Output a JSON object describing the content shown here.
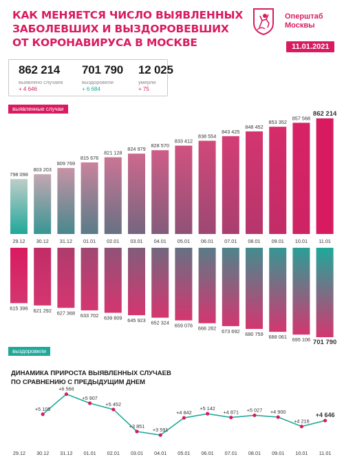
{
  "header": {
    "title_lines": [
      "КАК МЕНЯЕТСЯ ЧИСЛО ВЫЯВЛЕННЫХ",
      "ЗАБОЛЕВШИХ И ВЫЗДОРОВЕВШИХ",
      "ОТ КОРОНАВИРУСА В МОСКВЕ"
    ],
    "brand_lines": [
      "Оперштаб",
      "Москвы"
    ],
    "date": "11.01.2021",
    "logo_icon": "moscow-coat-of-arms-icon"
  },
  "stats": {
    "cases": {
      "value": "862 214",
      "label": "выявлено случаев",
      "delta": "+ 4 646"
    },
    "recovered": {
      "value": "701 790",
      "label": "выздоровели",
      "delta": "+ 6 684"
    },
    "deaths": {
      "value": "12 025",
      "label": "умерли",
      "delta": "+ 75"
    }
  },
  "colors": {
    "accent_pink": "#d81b60",
    "accent_teal": "#1fa89a"
  },
  "chart_data": [
    {
      "type": "bar",
      "legend": "выявленные случаи",
      "categories": [
        "29.12",
        "30.12",
        "31.12",
        "01.01",
        "02.01",
        "03.01",
        "04.01",
        "05.01",
        "06.01",
        "07.01",
        "08.01",
        "09.01",
        "10.01",
        "11.01"
      ],
      "values": [
        798098,
        803203,
        809769,
        815676,
        821128,
        824979,
        828570,
        833412,
        838554,
        843425,
        848452,
        853352,
        857568,
        862214
      ],
      "value_labels": [
        "798 098",
        "803 203",
        "809 769",
        "815 676",
        "821 128",
        "824 979",
        "828 570",
        "833 412",
        "838 554",
        "843 425",
        "848 452",
        "853 352",
        "857 568",
        "862 214"
      ]
    },
    {
      "type": "bar",
      "legend": "выздоровели",
      "categories": [
        "29.12",
        "30.12",
        "31.12",
        "01.01",
        "02.01",
        "03.01",
        "04.01",
        "05.01",
        "06.01",
        "07.01",
        "08.01",
        "09.01",
        "10.01",
        "11.01"
      ],
      "values": [
        615396,
        621292,
        627368,
        633702,
        639809,
        645923,
        652324,
        659076,
        666282,
        673692,
        680759,
        688061,
        695106,
        701790
      ],
      "value_labels": [
        "615 396",
        "621 292",
        "627 368",
        "633 702",
        "639 809",
        "645 923",
        "652 324",
        "659 076",
        "666 282",
        "673 692",
        "680 759",
        "688 061",
        "695 106",
        "701 790"
      ]
    },
    {
      "type": "line",
      "title_lines": [
        "ДИНАМИКА ПРИРОСТА ВЫЯВЛЕННЫХ СЛУЧАЕВ",
        "ПО СРАВНЕНИЮ С ПРЕДЫДУЩИМ ДНЕМ"
      ],
      "categories": [
        "29.12",
        "30.12",
        "31.12",
        "01.01",
        "02.01",
        "03.01",
        "04.01",
        "05.01",
        "06.01",
        "07.01",
        "08.01",
        "09.01",
        "10.01",
        "11.01"
      ],
      "values": [
        null,
        5105,
        6566,
        5907,
        5452,
        3851,
        3591,
        4842,
        5142,
        4871,
        5027,
        4900,
        4216,
        4646
      ],
      "value_labels": [
        "",
        "+5 105",
        "+6 566",
        "+5 907",
        "+5 452",
        "+3 851",
        "+3 591",
        "+4 842",
        "+5 142",
        "+4 871",
        "+5 027",
        "+4 900",
        "+4 216",
        "+4 646"
      ]
    }
  ]
}
